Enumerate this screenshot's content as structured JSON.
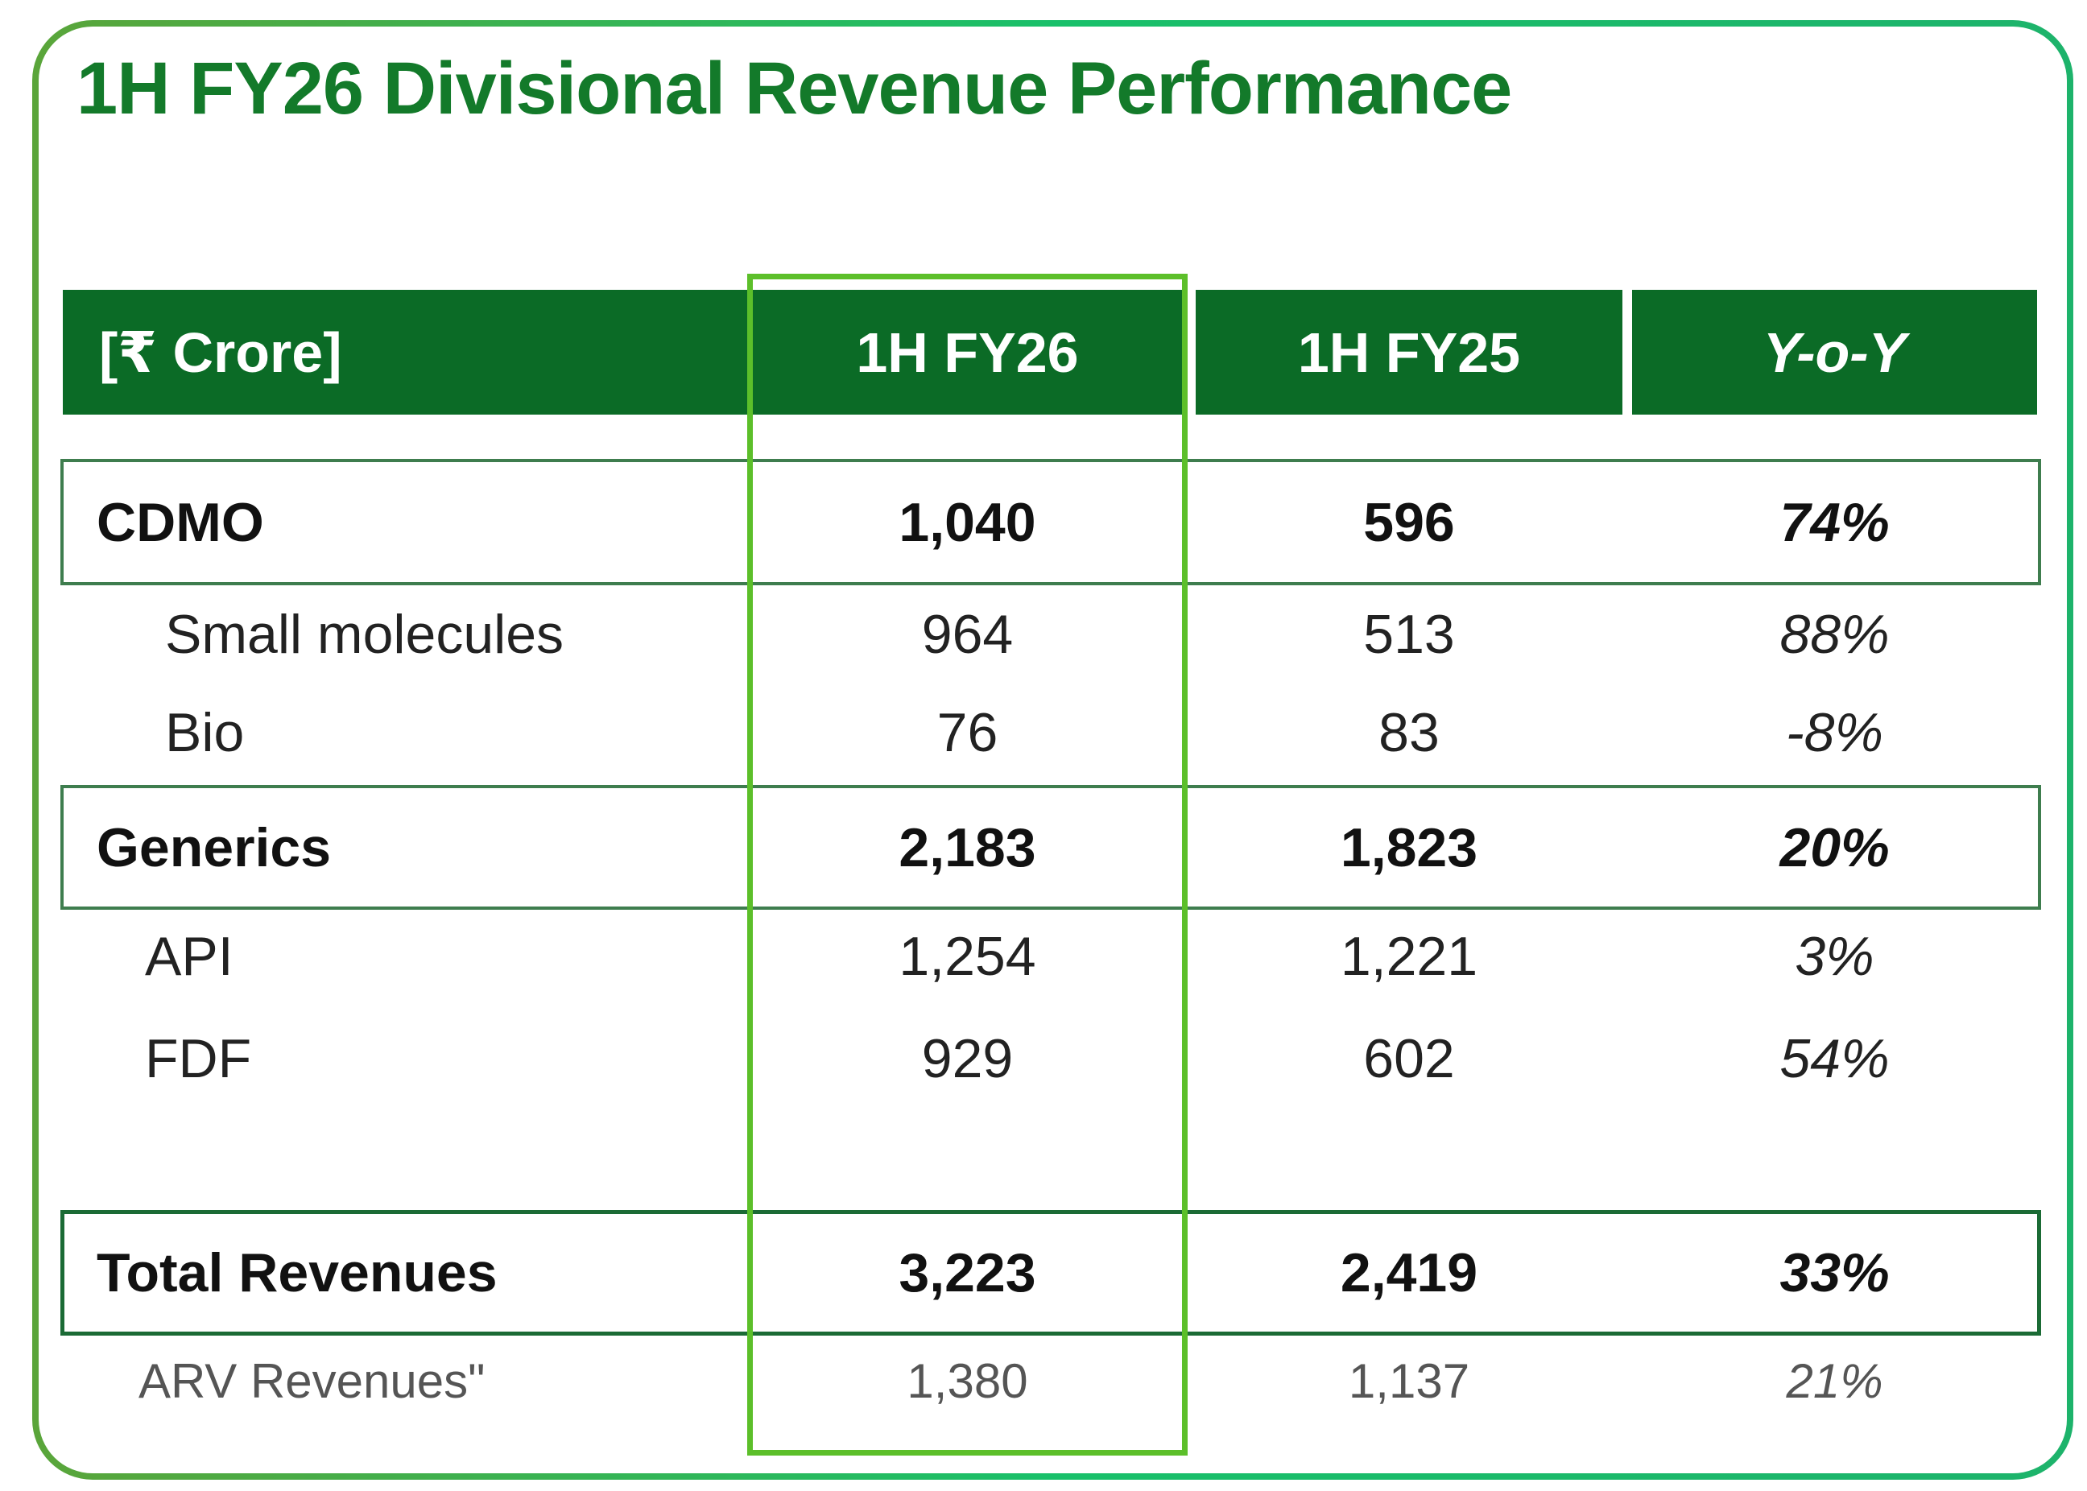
{
  "title": "1H FY26  Divisional Revenue Performance",
  "colors": {
    "header_bg": "#0b6b26",
    "title": "#137a2a",
    "highlight": "#5cbf2a"
  },
  "table": {
    "headers": [
      "[₹ Crore]",
      "1H FY26",
      "1H FY25",
      "Y-o-Y"
    ],
    "rows": [
      {
        "label": "CDMO",
        "fy26": "1,040",
        "fy25": "596",
        "yoy": "74%"
      },
      {
        "label": "Small molecules",
        "fy26": "964",
        "fy25": "513",
        "yoy": "88%"
      },
      {
        "label": "Bio",
        "fy26": "76",
        "fy25": "83",
        "yoy": "-8%"
      },
      {
        "label": "Generics",
        "fy26": "2,183",
        "fy25": "1,823",
        "yoy": "20%"
      },
      {
        "label": "API",
        "fy26": "1,254",
        "fy25": "1,221",
        "yoy": "3%"
      },
      {
        "label": "FDF",
        "fy26": "929",
        "fy25": "602",
        "yoy": "54%"
      },
      {
        "label": "Total Revenues",
        "fy26": "3,223",
        "fy25": "2,419",
        "yoy": "33%"
      },
      {
        "label": "ARV Revenues\"",
        "fy26": "1,380",
        "fy25": "1,137",
        "yoy": "21%"
      }
    ]
  }
}
